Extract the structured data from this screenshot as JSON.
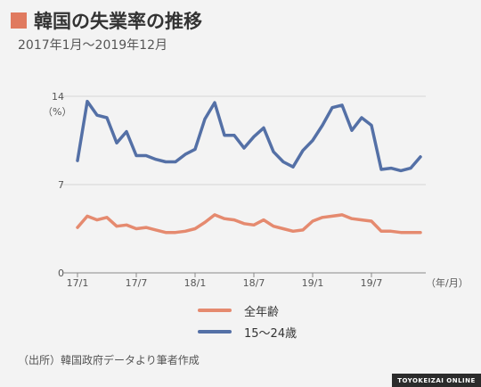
{
  "header": {
    "title": "韓国の失業率の推移",
    "subtitle": "2017年1月～2019年12月"
  },
  "chart_data": {
    "type": "line",
    "ylabel": "（%）",
    "xlabel": "（年/月）",
    "ylim": [
      0,
      14
    ],
    "yticks": [
      "14",
      "7",
      "0"
    ],
    "x": [
      "17/1",
      "17/2",
      "17/3",
      "17/4",
      "17/5",
      "17/6",
      "17/7",
      "17/8",
      "17/9",
      "17/10",
      "17/11",
      "17/12",
      "18/1",
      "18/2",
      "18/3",
      "18/4",
      "18/5",
      "18/6",
      "18/7",
      "18/8",
      "18/9",
      "18/10",
      "18/11",
      "18/12",
      "19/1",
      "19/2",
      "19/3",
      "19/4",
      "19/5",
      "19/6",
      "19/7",
      "19/8",
      "19/9",
      "19/10",
      "19/11",
      "19/12"
    ],
    "xtick_labels": [
      "17/1",
      "17/7",
      "18/1",
      "18/7",
      "19/1",
      "19/7"
    ],
    "xtick_indices": [
      0,
      6,
      12,
      18,
      24,
      30
    ],
    "series": [
      {
        "name": "全年齢",
        "color": "#e58a6f",
        "values": [
          3.6,
          4.5,
          4.2,
          4.4,
          3.7,
          3.8,
          3.5,
          3.6,
          3.4,
          3.2,
          3.2,
          3.3,
          3.5,
          4.0,
          4.6,
          4.3,
          4.2,
          3.9,
          3.8,
          4.2,
          3.7,
          3.5,
          3.3,
          3.4,
          4.1,
          4.4,
          4.5,
          4.6,
          4.3,
          4.2,
          4.1,
          3.3,
          3.3,
          3.2,
          3.2,
          3.2
        ]
      },
      {
        "name": "15～24歳",
        "color": "#5470a6",
        "values": [
          8.9,
          13.6,
          12.5,
          12.3,
          10.3,
          11.2,
          9.3,
          9.3,
          9.0,
          8.8,
          8.8,
          9.4,
          9.8,
          12.2,
          13.5,
          10.9,
          10.9,
          9.9,
          10.8,
          11.5,
          9.6,
          8.8,
          8.4,
          9.7,
          10.5,
          11.7,
          13.1,
          13.3,
          11.3,
          12.3,
          11.7,
          8.2,
          8.3,
          8.1,
          8.3,
          9.2
        ]
      }
    ]
  },
  "footer": {
    "source": "（出所）韓国政府データより筆者作成",
    "brand": "TOYOKEIZAI ONLINE"
  }
}
